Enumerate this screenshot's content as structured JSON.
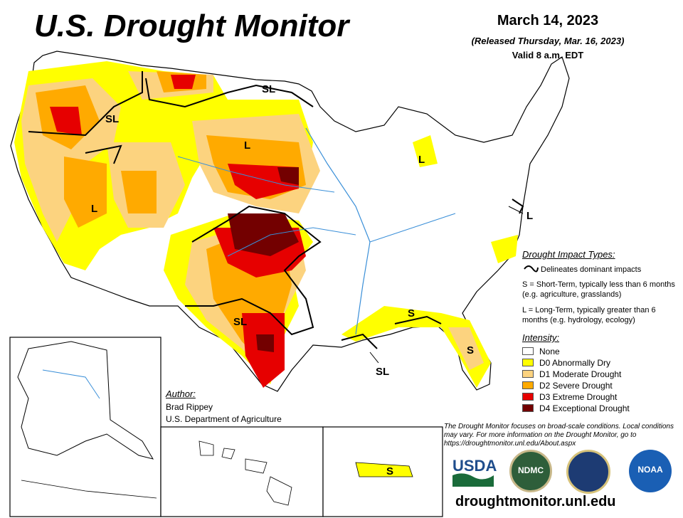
{
  "header": {
    "title": "U.S. Drought Monitor",
    "date": "March 14, 2023",
    "released": "(Released Thursday, Mar. 16, 2023)",
    "valid": "Valid 8 a.m. EDT"
  },
  "impact_types": {
    "heading": "Drought Impact Types:",
    "delineates": "Delineates dominant impacts",
    "short_term": "S = Short-Term, typically less than 6 months (e.g. agriculture, grasslands)",
    "long_term": "L = Long-Term, typically greater than 6 months (e.g. hydrology, ecology)"
  },
  "intensity": {
    "heading": "Intensity:",
    "levels": [
      {
        "label": "None",
        "color": "#ffffff"
      },
      {
        "label": "D0 Abnormally Dry",
        "color": "#ffff00"
      },
      {
        "label": "D1 Moderate Drought",
        "color": "#fcd37f"
      },
      {
        "label": "D2 Severe Drought",
        "color": "#ffaa00"
      },
      {
        "label": "D3 Extreme Drought",
        "color": "#e60000"
      },
      {
        "label": "D4 Exceptional Drought",
        "color": "#730000"
      }
    ]
  },
  "author": {
    "heading": "Author:",
    "name": "Brad Rippey",
    "org": "U.S. Department of Agriculture"
  },
  "note": "The Drought Monitor focuses on broad-scale conditions. Local conditions may vary. For more information on the Drought Monitor, go to https://droughtmonitor.unl.edu/About.aspx",
  "url": "droughtmonitor.unl.edu",
  "logos": {
    "usda": "USDA",
    "ndmc": "NDMC",
    "noaa": "NOAA"
  },
  "map_labels": {
    "sl_north": "SL",
    "sl_northwest": "SL",
    "l_north": "L",
    "l_west": "L",
    "l_michigan": "L",
    "l_east": "L",
    "sl_texas": "SL",
    "s_south": "S",
    "s_florida": "S",
    "sl_gulf": "SL",
    "s_puerto_rico": "S"
  }
}
